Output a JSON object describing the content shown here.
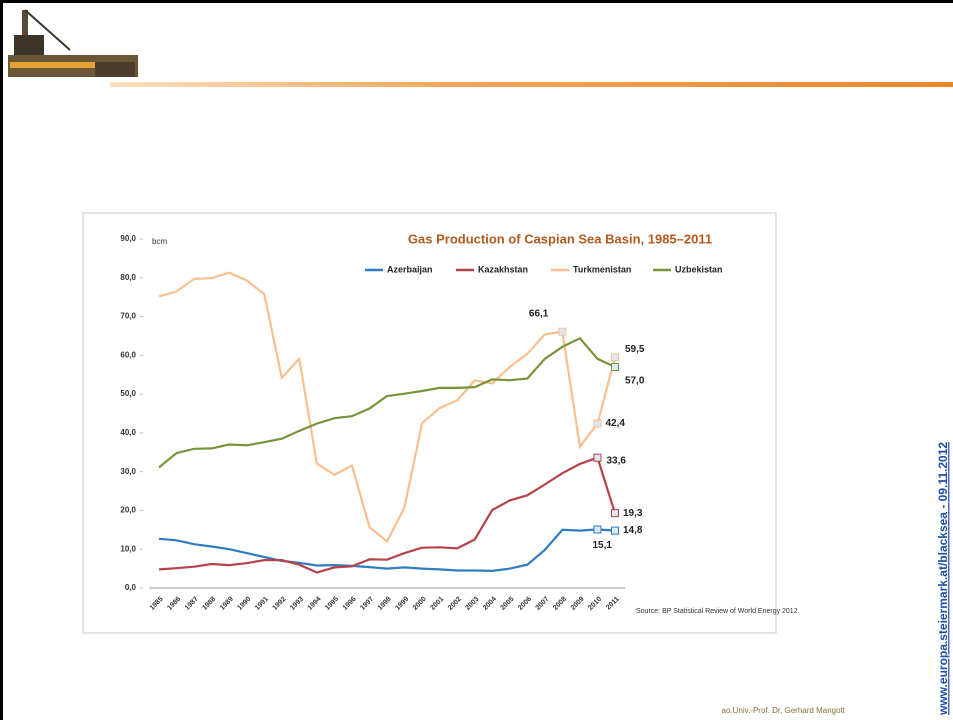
{
  "chart_data": {
    "type": "line",
    "title": "Gas Production of Caspian Sea Basin, 1985–2011",
    "y_unit": "bcm",
    "source": "Source: BP Statistical Review of World Energy 2012",
    "categories": [
      "1985",
      "1986",
      "1987",
      "1988",
      "1989",
      "1990",
      "1991",
      "1992",
      "1993",
      "1994",
      "1995",
      "1996",
      "1997",
      "1998",
      "1999",
      "2000",
      "2001",
      "2002",
      "2003",
      "2004",
      "2005",
      "2006",
      "2007",
      "2008",
      "2009",
      "2010",
      "2011"
    ],
    "ylim": [
      0,
      90
    ],
    "yticks": [
      {
        "value": 0,
        "label": "0,0"
      },
      {
        "value": 10,
        "label": "10,0"
      },
      {
        "value": 20,
        "label": "20,0"
      },
      {
        "value": 30,
        "label": "30,0"
      },
      {
        "value": 40,
        "label": "40,0"
      },
      {
        "value": 50,
        "label": "50,0"
      },
      {
        "value": 60,
        "label": "60,0"
      },
      {
        "value": 70,
        "label": "70,0"
      },
      {
        "value": 80,
        "label": "80,0"
      },
      {
        "value": 90,
        "label": "90,0"
      }
    ],
    "series": [
      {
        "name": "Azerbaijan",
        "color": "#2f7dc0",
        "values": [
          12.7,
          12.3,
          11.3,
          10.7,
          10.0,
          9.0,
          8.0,
          7.0,
          6.5,
          5.8,
          5.9,
          5.7,
          5.4,
          5.0,
          5.3,
          5.0,
          4.8,
          4.5,
          4.5,
          4.4,
          5.0,
          6.0,
          9.8,
          15.0,
          14.8,
          15.1,
          14.8
        ],
        "value_labels": [
          null,
          null,
          null,
          null,
          null,
          null,
          null,
          null,
          null,
          null,
          null,
          null,
          null,
          null,
          null,
          null,
          null,
          null,
          null,
          null,
          null,
          null,
          null,
          null,
          null,
          "15,1",
          "14,8"
        ]
      },
      {
        "name": "Kazakhstan",
        "color": "#b5424a",
        "values": [
          4.8,
          5.1,
          5.5,
          6.2,
          5.9,
          6.4,
          7.2,
          7.2,
          6.0,
          4.0,
          5.3,
          5.6,
          7.4,
          7.3,
          9.0,
          10.4,
          10.5,
          10.2,
          12.5,
          20.1,
          22.6,
          23.9,
          26.7,
          29.6,
          32.0,
          33.6,
          19.3
        ],
        "value_labels": [
          null,
          null,
          null,
          null,
          null,
          null,
          null,
          null,
          null,
          null,
          null,
          null,
          null,
          null,
          null,
          null,
          null,
          null,
          null,
          null,
          null,
          null,
          null,
          null,
          null,
          "33,6",
          "19,3"
        ]
      },
      {
        "name": "Turkmenistan",
        "color": "#f8c08e",
        "values": [
          75.2,
          76.5,
          79.7,
          79.9,
          81.3,
          79.3,
          75.8,
          54.2,
          59.1,
          32.1,
          29.2,
          31.6,
          15.7,
          12.0,
          20.8,
          42.5,
          46.4,
          48.4,
          53.5,
          52.8,
          57.0,
          60.4,
          65.4,
          66.1,
          36.4,
          42.4,
          59.5
        ],
        "value_labels": [
          null,
          null,
          null,
          null,
          null,
          null,
          null,
          null,
          null,
          null,
          null,
          null,
          null,
          null,
          null,
          null,
          null,
          null,
          null,
          null,
          null,
          null,
          null,
          "66,1",
          null,
          "42,4",
          "59,5"
        ]
      },
      {
        "name": "Uzbekistan",
        "color": "#77933c",
        "values": [
          31.1,
          34.8,
          35.9,
          36.0,
          37.0,
          36.8,
          37.6,
          38.5,
          40.5,
          42.4,
          43.8,
          44.3,
          46.3,
          49.5,
          50.1,
          50.8,
          51.6,
          51.6,
          51.8,
          53.8,
          53.6,
          54.0,
          59.1,
          62.2,
          64.4,
          59.1,
          57.0
        ],
        "value_labels": [
          null,
          null,
          null,
          null,
          null,
          null,
          null,
          null,
          null,
          null,
          null,
          null,
          null,
          null,
          null,
          null,
          null,
          null,
          null,
          null,
          null,
          null,
          null,
          null,
          null,
          null,
          "57,0"
        ]
      }
    ]
  },
  "footer": "ao.Univ.-Prof. Dr. Gerhard Mangott",
  "side_link": "www.europa.steiermark.at/blacksea - 09.11.2012"
}
